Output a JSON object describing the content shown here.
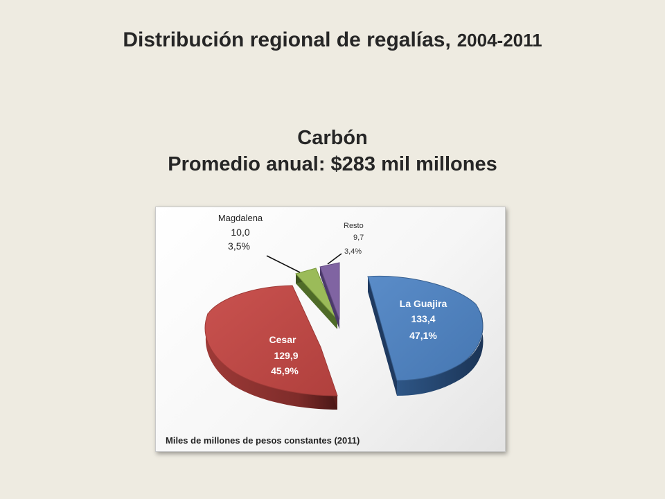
{
  "slide": {
    "title_main": "Distribución regional de regalías,",
    "title_years": "2004-2011",
    "subtitle_line1": "Carbón",
    "subtitle_line2": "Promedio anual: $283 mil millones"
  },
  "chart_data": {
    "type": "pie",
    "style": "3d-exploded",
    "unit_note": "Miles de millones de pesos constantes (2011)",
    "slices": [
      {
        "label": "La Guajira",
        "value": "133,4",
        "percent": "47,1%",
        "numeric_value": 133.4,
        "numeric_percent": 47.1,
        "color": "#4F81BD"
      },
      {
        "label": "Cesar",
        "value": "129,9",
        "percent": "45,9%",
        "numeric_value": 129.9,
        "numeric_percent": 45.9,
        "color": "#C0504D"
      },
      {
        "label": "Magdalena",
        "value": "10,0",
        "percent": "3,5%",
        "numeric_value": 10.0,
        "numeric_percent": 3.5,
        "color": "#9BBB59"
      },
      {
        "label": "Resto",
        "value": "9,7",
        "percent": "3,4%",
        "numeric_value": 9.7,
        "numeric_percent": 3.4,
        "color": "#8064A2"
      }
    ]
  }
}
